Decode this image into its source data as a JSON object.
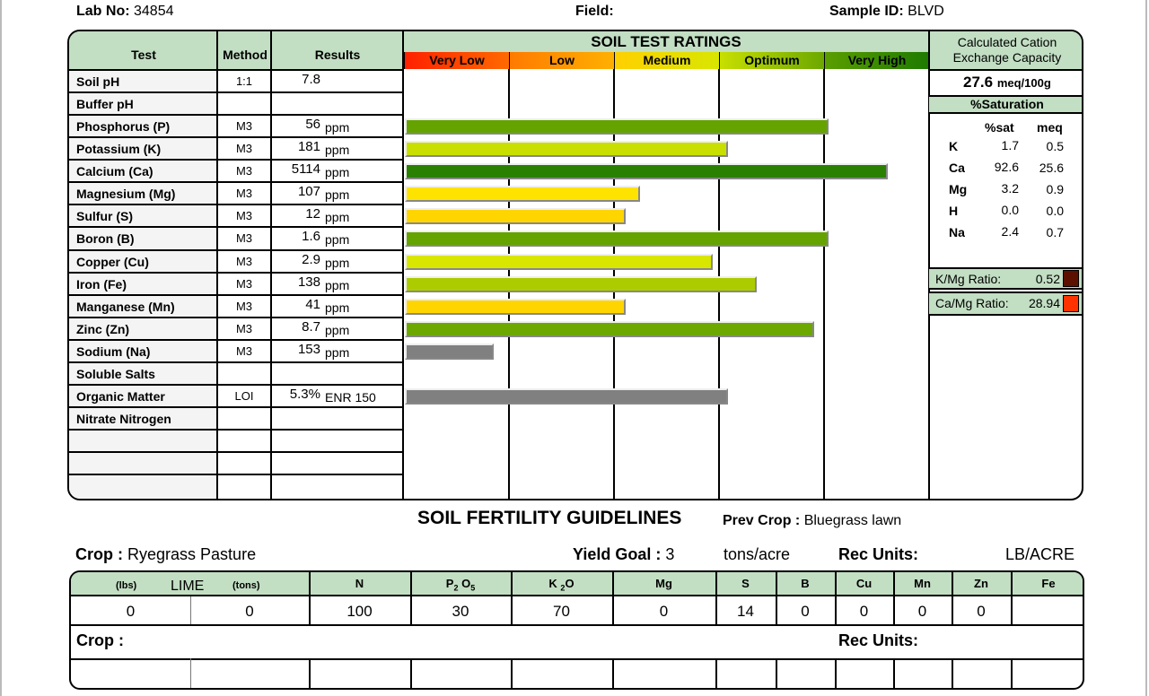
{
  "header": {
    "lab_no_label": "Lab No:",
    "lab_no": "34854",
    "field_label": "Field:",
    "field": "",
    "sample_id_label": "Sample ID:",
    "sample_id": "BLVD"
  },
  "table": {
    "col_test": "Test",
    "col_method": "Method",
    "col_results": "Results",
    "ratings_title": "SOIL TEST RATINGS",
    "ratings": [
      "Very Low",
      "Low",
      "Medium",
      "Optimum",
      "Very High"
    ],
    "rows": [
      {
        "test": "Soil pH",
        "method": "1:1",
        "value": "7.8",
        "unit": ""
      },
      {
        "test": "Buffer pH",
        "method": "",
        "value": "",
        "unit": ""
      },
      {
        "test": "Phosphorus (P)",
        "method": "M3",
        "value": "56",
        "unit": "ppm"
      },
      {
        "test": "Potassium (K)",
        "method": "M3",
        "value": "181",
        "unit": "ppm"
      },
      {
        "test": "Calcium (Ca)",
        "method": "M3",
        "value": "5114",
        "unit": "ppm"
      },
      {
        "test": "Magnesium (Mg)",
        "method": "M3",
        "value": "107",
        "unit": "ppm"
      },
      {
        "test": "Sulfur (S)",
        "method": "M3",
        "value": "12",
        "unit": "ppm"
      },
      {
        "test": "Boron (B)",
        "method": "M3",
        "value": "1.6",
        "unit": "ppm"
      },
      {
        "test": "Copper (Cu)",
        "method": "M3",
        "value": "2.9",
        "unit": "ppm"
      },
      {
        "test": "Iron (Fe)",
        "method": "M3",
        "value": "138",
        "unit": "ppm"
      },
      {
        "test": "Manganese (Mn)",
        "method": "M3",
        "value": "41",
        "unit": "ppm"
      },
      {
        "test": "Zinc (Zn)",
        "method": "M3",
        "value": "8.7",
        "unit": "ppm"
      },
      {
        "test": "Sodium (Na)",
        "method": "M3",
        "value": "153",
        "unit": "ppm"
      },
      {
        "test": "Soluble Salts",
        "method": "",
        "value": "",
        "unit": ""
      },
      {
        "test": "Organic Matter",
        "method": "LOI",
        "value": "5.3%",
        "unit": "ENR 150"
      },
      {
        "test": "Nitrate Nitrogen",
        "method": "",
        "value": "",
        "unit": ""
      }
    ]
  },
  "chart_data": {
    "type": "bar",
    "orientation": "horizontal",
    "title": "SOIL TEST RATINGS",
    "xlim": [
      0,
      5
    ],
    "x_categories": [
      "Very Low",
      "Low",
      "Medium",
      "Optimum",
      "Very High"
    ],
    "categories": [
      "Phosphorus (P)",
      "Potassium (K)",
      "Calcium (Ca)",
      "Magnesium (Mg)",
      "Sulfur (S)",
      "Boron (B)",
      "Copper (Cu)",
      "Iron (Fe)",
      "Manganese (Mn)",
      "Zinc (Zn)",
      "Sodium (Na)",
      "Organic Matter"
    ],
    "row_index": [
      2,
      3,
      4,
      5,
      6,
      7,
      8,
      9,
      10,
      11,
      12,
      14
    ],
    "values": [
      4.03,
      3.08,
      4.6,
      2.24,
      2.1,
      4.03,
      2.93,
      3.35,
      2.1,
      3.9,
      0.85,
      3.08
    ],
    "colors": [
      "#64a300",
      "#c8df00",
      "#2a8000",
      "#ffe300",
      "#ffd500",
      "#64a300",
      "#d8e600",
      "#adcc00",
      "#ffd500",
      "#6ca800",
      "#808080",
      "#808080"
    ]
  },
  "cec": {
    "title": "Calculated Cation Exchange Capacity",
    "value": "27.6",
    "unit": "meq/100g",
    "sat_title": "%Saturation",
    "col_sat": "%sat",
    "col_meq": "meq",
    "rows": [
      {
        "ion": "K",
        "sat": "1.7",
        "meq": "0.5"
      },
      {
        "ion": "Ca",
        "sat": "92.6",
        "meq": "25.6"
      },
      {
        "ion": "Mg",
        "sat": "3.2",
        "meq": "0.9"
      },
      {
        "ion": "H",
        "sat": "0.0",
        "meq": "0.0"
      },
      {
        "ion": "Na",
        "sat": "2.4",
        "meq": "0.7"
      }
    ],
    "kmg_label": "K/Mg Ratio:",
    "kmg": "0.52",
    "kmg_color": "#5c1000",
    "camg_label": "Ca/Mg Ratio:",
    "camg": "28.94",
    "camg_color": "#ff3300"
  },
  "guide": {
    "title": "SOIL FERTILITY GUIDELINES",
    "prev_crop_label": "Prev Crop :",
    "prev_crop": "Bluegrass lawn",
    "crop_label": "Crop :",
    "crop": "Ryegrass Pasture",
    "yield_label": "Yield Goal :",
    "yield": "3",
    "yield_unit": "tons/acre",
    "rec_units_label": "Rec Units:",
    "rec_units": "LB/ACRE",
    "lime_lbs": "(lbs)",
    "lime": "LIME",
    "lime_tons": "(tons)",
    "cols": [
      "N",
      "P",
      "K",
      "Mg",
      "S",
      "B",
      "Cu",
      "Mn",
      "Zn",
      "Fe"
    ],
    "values": [
      "0",
      "0",
      "100",
      "30",
      "70",
      "0",
      "14",
      "0",
      "0",
      "0",
      "0",
      ""
    ],
    "crop2_label": "Crop :",
    "rec_units2_label": "Rec Units:"
  }
}
